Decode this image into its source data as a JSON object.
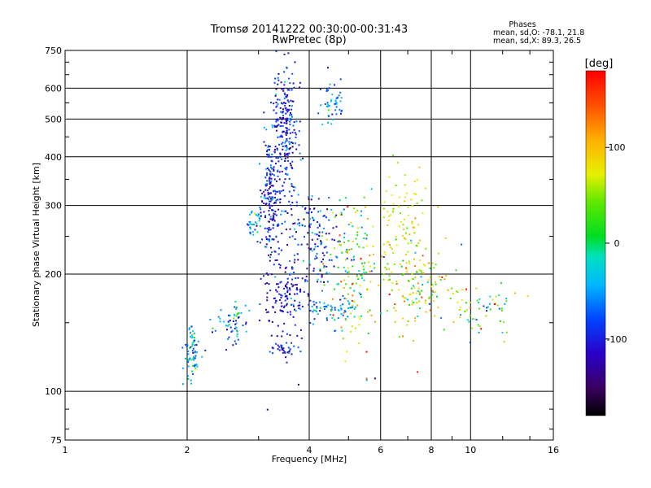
{
  "chart_data": {
    "type": "scatter",
    "title": "Tromsø 20141222 00:30:00-00:31:43",
    "subtitle": "RwPretec (8p)",
    "xlabel": "Frequency [MHz]",
    "ylabel": "Stationary phase Virtual Height [km]",
    "x_scale": "log",
    "y_scale": "log",
    "xlim": [
      1,
      16
    ],
    "ylim": [
      75,
      750
    ],
    "x_ticks": [
      "1",
      "2",
      "4",
      "6",
      "8",
      "10",
      "16"
    ],
    "x_tick_values": [
      1,
      2,
      4,
      6,
      8,
      10,
      16
    ],
    "y_ticks": [
      "75",
      "100",
      "200",
      "300",
      "400",
      "500",
      "600",
      "750"
    ],
    "y_tick_values": [
      75,
      100,
      200,
      300,
      400,
      500,
      600,
      750
    ],
    "grid": true,
    "info": {
      "heading": "Phases",
      "line_o": "mean, sd,O: -78.1, 21.8",
      "line_x": "mean, sd,X:  89.3, 26.5"
    },
    "colorbar": {
      "label": "[deg]",
      "range": [
        -180,
        180
      ],
      "ticks": [
        "100",
        "0",
        "-100"
      ],
      "tick_values": [
        100,
        0,
        -100
      ]
    },
    "series": [
      {
        "clusters": [
          {
            "f": [
              2.05,
              0.05
            ],
            "h": [
              128,
              10
            ],
            "phase": [
              -40,
              40
            ],
            "n": 70
          },
          {
            "f": [
              2.6,
              0.12
            ],
            "h": [
              148,
              10
            ],
            "phase": [
              -40,
              40
            ],
            "n": 60
          },
          {
            "f": [
              2.9,
              0.07
            ],
            "h": [
              270,
              12
            ],
            "phase": [
              -40,
              30
            ],
            "n": 35
          },
          {
            "f": [
              3.2,
              0.08
            ],
            "h": [
              300,
              70
            ],
            "phase": [
              -100,
              30
            ],
            "n": 200
          },
          {
            "f": [
              3.5,
              0.12
            ],
            "h": [
              470,
              110
            ],
            "phase": [
              -100,
              30
            ],
            "n": 260
          },
          {
            "f": [
              3.5,
              0.18
            ],
            "h": [
              175,
              20
            ],
            "phase": [
              -110,
              20
            ],
            "n": 110
          },
          {
            "f": [
              3.5,
              0.15
            ],
            "h": [
              128,
              3
            ],
            "phase": [
              -100,
              20
            ],
            "n": 35
          },
          {
            "f": [
              4.1,
              0.3
            ],
            "h": [
              240,
              40
            ],
            "phase": [
              -95,
              40
            ],
            "n": 160
          },
          {
            "f": [
              4.6,
              0.15
            ],
            "h": [
              550,
              40
            ],
            "phase": [
              -60,
              25
            ],
            "n": 50
          },
          {
            "f": [
              4.5,
              0.35
            ],
            "h": [
              163,
              6
            ],
            "phase": [
              -50,
              30
            ],
            "n": 60
          },
          {
            "f": [
              5.2,
              0.4
            ],
            "h": [
              210,
              45
            ],
            "phase": [
              40,
              70
            ],
            "n": 150
          },
          {
            "f": [
              6.8,
              0.5
            ],
            "h": [
              260,
              50
            ],
            "phase": [
              75,
              25
            ],
            "n": 120
          },
          {
            "f": [
              7.5,
              0.8
            ],
            "h": [
              185,
              25
            ],
            "phase": [
              60,
              50
            ],
            "n": 110
          },
          {
            "f": [
              10.5,
              1.2
            ],
            "h": [
              160,
              12
            ],
            "phase": [
              30,
              60
            ],
            "n": 60
          }
        ]
      }
    ]
  }
}
